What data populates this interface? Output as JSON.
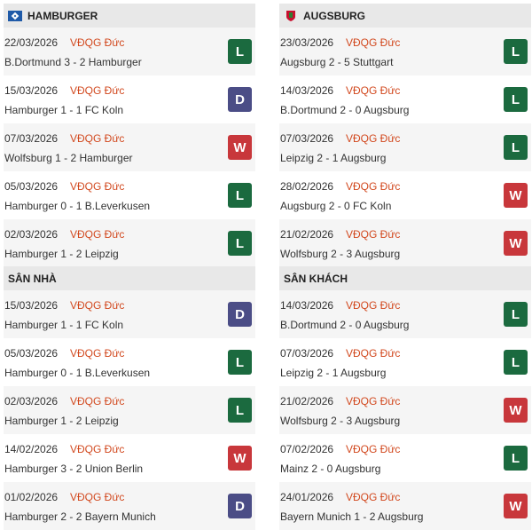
{
  "colors": {
    "L": "#1b6a3f",
    "D": "#4b4d86",
    "W": "#c8373b",
    "league": "#d2491f"
  },
  "sections": [
    {
      "title": "HAMBURGER",
      "logo": "hamburger-logo",
      "matches": [
        {
          "date": "22/03/2026",
          "league": "VĐQG Đức",
          "result": "B.Dortmund 3 - 2 Hamburger",
          "outcome": "L"
        },
        {
          "date": "15/03/2026",
          "league": "VĐQG Đức",
          "result": "Hamburger 1 - 1 FC Koln",
          "outcome": "D"
        },
        {
          "date": "07/03/2026",
          "league": "VĐQG Đức",
          "result": "Wolfsburg 1 - 2 Hamburger",
          "outcome": "W"
        },
        {
          "date": "05/03/2026",
          "league": "VĐQG Đức",
          "result": "Hamburger 0 - 1 B.Leverkusen",
          "outcome": "L"
        },
        {
          "date": "02/03/2026",
          "league": "VĐQG Đức",
          "result": "Hamburger 1 - 2 Leipzig",
          "outcome": "L"
        }
      ]
    },
    {
      "title": "AUGSBURG",
      "logo": "augsburg-logo",
      "matches": [
        {
          "date": "23/03/2026",
          "league": "VĐQG Đức",
          "result": "Augsburg 2 - 5 Stuttgart",
          "outcome": "L"
        },
        {
          "date": "14/03/2026",
          "league": "VĐQG Đức",
          "result": "B.Dortmund 2 - 0 Augsburg",
          "outcome": "L"
        },
        {
          "date": "07/03/2026",
          "league": "VĐQG Đức",
          "result": "Leipzig 2 - 1 Augsburg",
          "outcome": "L"
        },
        {
          "date": "28/02/2026",
          "league": "VĐQG Đức",
          "result": "Augsburg 2 - 0 FC Koln",
          "outcome": "W"
        },
        {
          "date": "21/02/2026",
          "league": "VĐQG Đức",
          "result": "Wolfsburg 2 - 3 Augsburg",
          "outcome": "W"
        }
      ]
    },
    {
      "title": "SÂN NHÀ",
      "matches": [
        {
          "date": "15/03/2026",
          "league": "VĐQG Đức",
          "result": "Hamburger 1 - 1 FC Koln",
          "outcome": "D"
        },
        {
          "date": "05/03/2026",
          "league": "VĐQG Đức",
          "result": "Hamburger 0 - 1 B.Leverkusen",
          "outcome": "L"
        },
        {
          "date": "02/03/2026",
          "league": "VĐQG Đức",
          "result": "Hamburger 1 - 2 Leipzig",
          "outcome": "L"
        },
        {
          "date": "14/02/2026",
          "league": "VĐQG Đức",
          "result": "Hamburger 3 - 2 Union Berlin",
          "outcome": "W"
        },
        {
          "date": "01/02/2026",
          "league": "VĐQG Đức",
          "result": "Hamburger 2 - 2 Bayern Munich",
          "outcome": "D"
        }
      ]
    },
    {
      "title": "SÂN KHÁCH",
      "matches": [
        {
          "date": "14/03/2026",
          "league": "VĐQG Đức",
          "result": "B.Dortmund 2 - 0 Augsburg",
          "outcome": "L"
        },
        {
          "date": "07/03/2026",
          "league": "VĐQG Đức",
          "result": "Leipzig 2 - 1 Augsburg",
          "outcome": "L"
        },
        {
          "date": "21/02/2026",
          "league": "VĐQG Đức",
          "result": "Wolfsburg 2 - 3 Augsburg",
          "outcome": "W"
        },
        {
          "date": "07/02/2026",
          "league": "VĐQG Đức",
          "result": "Mainz 2 - 0 Augsburg",
          "outcome": "L"
        },
        {
          "date": "24/01/2026",
          "league": "VĐQG Đức",
          "result": "Bayern Munich 1 - 2 Augsburg",
          "outcome": "W"
        }
      ]
    }
  ]
}
